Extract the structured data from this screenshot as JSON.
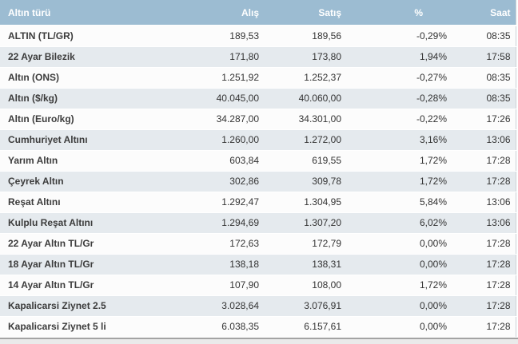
{
  "table": {
    "columns": [
      {
        "key": "name",
        "label": "Altın türü",
        "align": "left"
      },
      {
        "key": "alis",
        "label": "Alış",
        "align": "right"
      },
      {
        "key": "satis",
        "label": "Satış",
        "align": "right"
      },
      {
        "key": "pct",
        "label": "%",
        "align": "right"
      },
      {
        "key": "saat",
        "label": "Saat",
        "align": "right"
      }
    ],
    "rows": [
      [
        "ALTIN (TL/GR)",
        "189,53",
        "189,56",
        "-0,29%",
        "08:35"
      ],
      [
        "22 Ayar Bilezik",
        "171,80",
        "173,80",
        "1,94%",
        "17:58"
      ],
      [
        "Altın (ONS)",
        "1.251,92",
        "1.252,37",
        "-0,27%",
        "08:35"
      ],
      [
        "Altın ($/kg)",
        "40.045,00",
        "40.060,00",
        "-0,28%",
        "08:35"
      ],
      [
        "Altın (Euro/kg)",
        "34.287,00",
        "34.301,00",
        "-0,22%",
        "17:26"
      ],
      [
        "Cumhuriyet Altını",
        "1.260,00",
        "1.272,00",
        "3,16%",
        "13:06"
      ],
      [
        "Yarım Altın",
        "603,84",
        "619,55",
        "1,72%",
        "17:28"
      ],
      [
        "Çeyrek Altın",
        "302,86",
        "309,78",
        "1,72%",
        "17:28"
      ],
      [
        "Reşat Altını",
        "1.292,47",
        "1.304,95",
        "5,84%",
        "13:06"
      ],
      [
        "Kulplu Reşat Altını",
        "1.294,69",
        "1.307,20",
        "6,02%",
        "13:06"
      ],
      [
        "22 Ayar Altın TL/Gr",
        "172,63",
        "172,79",
        "0,00%",
        "17:28"
      ],
      [
        "18 Ayar Altın TL/Gr",
        "138,18",
        "138,31",
        "0,00%",
        "17:28"
      ],
      [
        "14 Ayar Altın TL/Gr",
        "107,90",
        "108,00",
        "1,72%",
        "17:28"
      ],
      [
        "Kapalicarsi Ziynet 2.5",
        "3.028,64",
        "3.076,91",
        "0,00%",
        "17:28"
      ],
      [
        "Kapalicarsi Ziynet 5 li",
        "6.038,35",
        "6.157,61",
        "0,00%",
        "17:28"
      ]
    ],
    "colors": {
      "header_bg": "#9cbcd2",
      "header_text": "#ffffff",
      "row_bg": "#fcfcfc",
      "row_alt_bg": "#e5eaee",
      "text": "#333333",
      "bottom_border": "#a3a3a3"
    }
  }
}
